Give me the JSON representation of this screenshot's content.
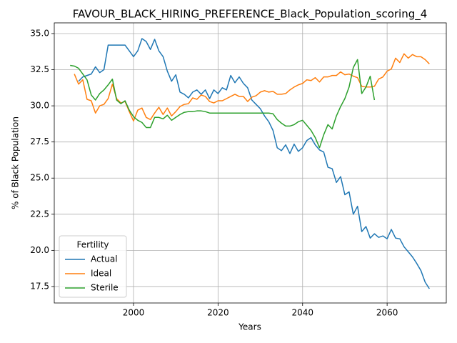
{
  "chart_data": {
    "type": "line",
    "title": "FAVOUR_BLACK_HIRING_PREFERENCE_Black_Population_scoring_4",
    "xlabel": "Years",
    "ylabel": "% of Black Population",
    "legend_title": "Fertility",
    "legend_loc": "lower left",
    "grid": true,
    "x": [
      1985,
      1986,
      1987,
      1988,
      1989,
      1990,
      1991,
      1992,
      1993,
      1994,
      1995,
      1996,
      1997,
      1998,
      1999,
      2000,
      2001,
      2002,
      2003,
      2004,
      2005,
      2006,
      2007,
      2008,
      2009,
      2010,
      2011,
      2012,
      2013,
      2014,
      2015,
      2016,
      2017,
      2018,
      2019,
      2020,
      2021,
      2022,
      2023,
      2024,
      2025,
      2026,
      2027,
      2028,
      2029,
      2030,
      2031,
      2032,
      2033,
      2034,
      2035,
      2036,
      2037,
      2038,
      2039,
      2040,
      2041,
      2042,
      2043,
      2044,
      2045,
      2046,
      2047,
      2048,
      2049,
      2050,
      2051,
      2052,
      2053,
      2054,
      2055,
      2056,
      2057,
      2058,
      2059,
      2060,
      2061,
      2062,
      2063,
      2064,
      2065,
      2066,
      2067,
      2068,
      2069,
      2070
    ],
    "series": [
      {
        "name": "Actual",
        "color": "#1f77b4",
        "values": [
          null,
          null,
          31.7,
          32.0,
          32.1,
          32.2,
          32.7,
          32.3,
          32.5,
          34.2,
          34.2,
          34.2,
          34.2,
          34.2,
          33.8,
          33.4,
          33.8,
          34.65,
          34.45,
          33.9,
          34.6,
          33.8,
          33.4,
          32.4,
          31.7,
          32.15,
          30.95,
          30.8,
          30.55,
          30.95,
          31.1,
          30.8,
          31.1,
          30.5,
          31.1,
          30.85,
          31.25,
          31.1,
          32.1,
          31.6,
          32.0,
          31.55,
          31.25,
          30.4,
          30.1,
          29.8,
          29.3,
          28.9,
          28.3,
          27.1,
          26.9,
          27.3,
          26.7,
          27.35,
          26.85,
          27.1,
          27.6,
          27.8,
          27.3,
          26.95,
          26.8,
          25.75,
          25.65,
          24.7,
          25.1,
          23.85,
          24.05,
          22.5,
          23.05,
          21.3,
          21.65,
          20.85,
          21.15,
          20.9,
          21.0,
          20.8,
          21.45,
          20.85,
          20.8,
          20.25,
          19.9,
          19.55,
          19.1,
          18.6,
          17.8,
          17.35
        ]
      },
      {
        "name": "Ideal",
        "color": "#ff7f0e",
        "values": [
          null,
          32.2,
          31.5,
          31.8,
          30.45,
          30.35,
          29.5,
          30.0,
          30.1,
          30.5,
          31.5,
          30.5,
          30.2,
          30.3,
          29.6,
          28.95,
          29.7,
          29.85,
          29.2,
          29.05,
          29.5,
          29.9,
          29.4,
          29.85,
          29.3,
          29.6,
          29.95,
          30.1,
          30.15,
          30.55,
          30.45,
          30.75,
          30.65,
          30.3,
          30.2,
          30.35,
          30.35,
          30.5,
          30.65,
          30.8,
          30.65,
          30.65,
          30.3,
          30.6,
          30.7,
          30.95,
          31.05,
          30.95,
          31.0,
          30.8,
          30.8,
          30.85,
          31.1,
          31.3,
          31.45,
          31.55,
          31.8,
          31.75,
          31.95,
          31.65,
          32.0,
          32.0,
          32.1,
          32.1,
          32.35,
          32.15,
          32.2,
          32.05,
          31.95,
          31.35,
          31.3,
          31.3,
          31.35,
          31.85,
          32.0,
          32.4,
          32.55,
          33.3,
          33.0,
          33.6,
          33.3,
          33.55,
          33.4,
          33.4,
          33.2,
          32.9
        ]
      },
      {
        "name": "Sterile",
        "color": "#2ca02c",
        "values": [
          32.8,
          32.75,
          32.6,
          32.2,
          31.8,
          30.75,
          30.4,
          30.85,
          31.1,
          31.45,
          31.85,
          30.4,
          30.15,
          30.35,
          29.7,
          29.25,
          29.0,
          28.85,
          28.5,
          28.5,
          29.2,
          29.2,
          29.1,
          29.35,
          29.0,
          29.2,
          29.4,
          29.55,
          29.6,
          29.6,
          29.65,
          29.65,
          29.6,
          29.5,
          29.5,
          29.5,
          29.5,
          29.5,
          29.5,
          29.5,
          29.5,
          29.5,
          29.5,
          29.5,
          29.5,
          29.5,
          29.5,
          29.5,
          29.45,
          29.05,
          28.8,
          28.6,
          28.6,
          28.7,
          28.9,
          29.0,
          28.65,
          28.3,
          27.8,
          27.1,
          28.0,
          28.7,
          28.4,
          29.3,
          29.95,
          30.5,
          31.3,
          32.65,
          33.2,
          30.85,
          31.3,
          32.05,
          30.4,
          null,
          null,
          null,
          null,
          null,
          null,
          null,
          null,
          null,
          null,
          null,
          null,
          null
        ]
      }
    ],
    "xlim": [
      1981.25,
      2074
    ],
    "ylim": [
      16.36,
      35.74
    ],
    "xticks": [
      2000,
      2020,
      2040,
      2060
    ],
    "yticks": [
      17.5,
      {
        "value": 20,
        "label": "20.0"
      },
      22.5,
      {
        "value": 25,
        "label": "25.0"
      },
      27.5,
      {
        "value": 30,
        "label": "30.0"
      },
      32.5,
      {
        "value": 35,
        "label": "35.0"
      }
    ]
  }
}
